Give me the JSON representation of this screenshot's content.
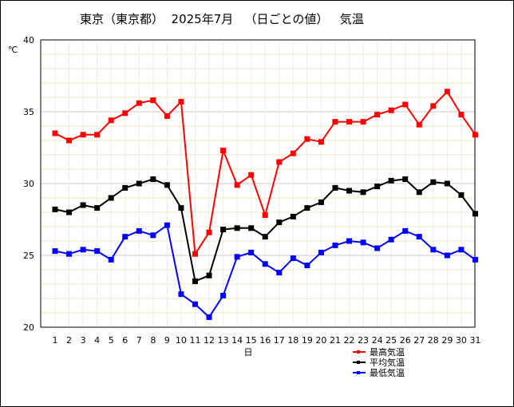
{
  "chart_data": {
    "type": "line",
    "title": "東京（東京都）  2025年7月   （日ごとの値）   気温",
    "xlabel": "日",
    "ylabel": "℃",
    "ylim": [
      20,
      40
    ],
    "yticks": [
      20,
      25,
      30,
      35,
      40
    ],
    "grid": true,
    "legend_position": "bottom-right",
    "x": [
      1,
      2,
      3,
      4,
      5,
      6,
      7,
      8,
      9,
      10,
      11,
      12,
      13,
      14,
      15,
      16,
      17,
      18,
      19,
      20,
      21,
      22,
      23,
      24,
      25,
      26,
      27,
      28,
      29,
      30,
      31
    ],
    "series": [
      {
        "name": "最高気温",
        "color": "#ff0000",
        "values": [
          33.5,
          33.0,
          33.4,
          33.4,
          34.4,
          34.9,
          35.6,
          35.8,
          34.7,
          35.7,
          25.1,
          26.6,
          32.3,
          29.9,
          30.6,
          27.8,
          31.5,
          32.1,
          33.1,
          32.9,
          34.3,
          34.3,
          34.3,
          34.8,
          35.1,
          35.5,
          34.1,
          35.4,
          36.4,
          34.8,
          33.4
        ]
      },
      {
        "name": "平均気温",
        "color": "#000000",
        "values": [
          28.2,
          28.0,
          28.5,
          28.3,
          29.0,
          29.7,
          30.0,
          30.3,
          29.9,
          28.3,
          23.2,
          23.6,
          26.8,
          26.9,
          26.9,
          26.3,
          27.3,
          27.7,
          28.3,
          28.7,
          29.7,
          29.5,
          29.4,
          29.8,
          30.2,
          30.3,
          29.4,
          30.1,
          30.0,
          29.2,
          27.9
        ]
      },
      {
        "name": "最低気温",
        "color": "#0000ff",
        "values": [
          25.3,
          25.1,
          25.4,
          25.3,
          24.7,
          26.3,
          26.7,
          26.4,
          27.1,
          22.3,
          21.6,
          20.7,
          22.2,
          24.9,
          25.2,
          24.4,
          23.8,
          24.8,
          24.3,
          25.2,
          25.7,
          26.0,
          25.9,
          25.5,
          26.1,
          26.7,
          26.3,
          25.4,
          25.0,
          25.4,
          24.7
        ]
      }
    ]
  }
}
